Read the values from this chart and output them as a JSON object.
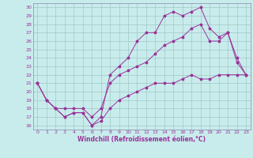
{
  "xlabel": "Windchill (Refroidissement éolien,°C)",
  "bg_color": "#c8ecec",
  "grid_color": "#a0c8c8",
  "line_color": "#993399",
  "line1_x": [
    0,
    1,
    2,
    3,
    4,
    5,
    6,
    7,
    8,
    9,
    10,
    11,
    12,
    13,
    14,
    15,
    16,
    17,
    18,
    19,
    20,
    21,
    22,
    23
  ],
  "line1_y": [
    21,
    19,
    18,
    17,
    17.5,
    17.5,
    16,
    16.5,
    18,
    19,
    19.5,
    20,
    20.5,
    21,
    21,
    21,
    21.5,
    22,
    21.5,
    21.5,
    22,
    22,
    22,
    22
  ],
  "line2_x": [
    0,
    1,
    2,
    3,
    4,
    5,
    6,
    7,
    8,
    9,
    10,
    11,
    12,
    13,
    14,
    15,
    16,
    17,
    18,
    19,
    20,
    21,
    22,
    23
  ],
  "line2_y": [
    21,
    19,
    18,
    17,
    17.5,
    17.5,
    16,
    17,
    22,
    23,
    24,
    26,
    27,
    27,
    29,
    29.5,
    29,
    29.5,
    30,
    27.5,
    26.5,
    27,
    23.5,
    22
  ],
  "line3_x": [
    0,
    1,
    2,
    3,
    4,
    5,
    6,
    7,
    8,
    9,
    10,
    11,
    12,
    13,
    14,
    15,
    16,
    17,
    18,
    19,
    20,
    21,
    22,
    23
  ],
  "line3_y": [
    21,
    19,
    18,
    18,
    18,
    18,
    17,
    18,
    21,
    22,
    22.5,
    23,
    23.5,
    24.5,
    25.5,
    26,
    26.5,
    27.5,
    28,
    26,
    26,
    27,
    24,
    22
  ],
  "xlim": [
    -0.5,
    23.5
  ],
  "ylim": [
    15.5,
    30.5
  ],
  "yticks": [
    16,
    17,
    18,
    19,
    20,
    21,
    22,
    23,
    24,
    25,
    26,
    27,
    28,
    29,
    30
  ],
  "xticks": [
    0,
    1,
    2,
    3,
    4,
    5,
    6,
    7,
    8,
    9,
    10,
    11,
    12,
    13,
    14,
    15,
    16,
    17,
    18,
    19,
    20,
    21,
    22,
    23
  ]
}
